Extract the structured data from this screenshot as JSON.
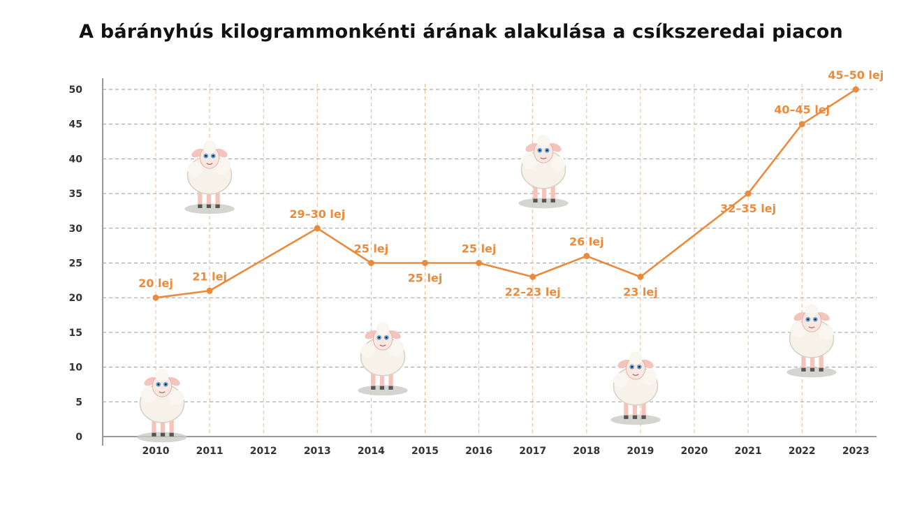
{
  "chart_data": {
    "type": "line",
    "title": "A bárányhús kilogrammonkénti árának alakulása a csíkszeredai piacon",
    "xlabel": "",
    "ylabel": "",
    "ylim": [
      0,
      50
    ],
    "y_ticks": [
      0,
      5,
      10,
      15,
      20,
      25,
      30,
      35,
      40,
      45,
      50
    ],
    "x_ticks": [
      "2010",
      "2011",
      "2012",
      "2013",
      "2014",
      "2015",
      "2016",
      "2017",
      "2018",
      "2019",
      "2020",
      "2021",
      "2022",
      "2023"
    ],
    "grid": true,
    "series": [
      {
        "points": [
          {
            "x": "2010",
            "y": 20,
            "label": "20 lej",
            "label_pos": "above"
          },
          {
            "x": "2011",
            "y": 21,
            "label": "21 lej",
            "label_pos": "above"
          },
          {
            "x": "2013",
            "y": 30,
            "label": "29–30 lej",
            "label_pos": "above"
          },
          {
            "x": "2014",
            "y": 25,
            "label": "25 lej",
            "label_pos": "above"
          },
          {
            "x": "2015",
            "y": 25,
            "label": "25 lej",
            "label_pos": "below"
          },
          {
            "x": "2016",
            "y": 25,
            "label": "25 lej",
            "label_pos": "above"
          },
          {
            "x": "2017",
            "y": 23,
            "label": "22–23 lej",
            "label_pos": "below"
          },
          {
            "x": "2018",
            "y": 26,
            "label": "26 lej",
            "label_pos": "above"
          },
          {
            "x": "2019",
            "y": 23,
            "label": "23 lej",
            "label_pos": "below"
          },
          {
            "x": "2021",
            "y": 35,
            "label": "32–35 lej",
            "label_pos": "below"
          },
          {
            "x": "2022",
            "y": 45,
            "label": "40–45 lej",
            "label_pos": "above"
          },
          {
            "x": "2023",
            "y": 50,
            "label": "45–50 lej",
            "label_pos": "above"
          }
        ]
      }
    ],
    "colors": {
      "line": "#ec8a3c",
      "vgrid": "#f2b98c",
      "hgrid": "#9a9a9a",
      "axis": "#9a9a9a"
    },
    "decorations": [
      "sheep-icon",
      "sheep-icon",
      "sheep-icon",
      "sheep-icon",
      "sheep-icon",
      "sheep-icon",
      "sheep-icon"
    ]
  }
}
